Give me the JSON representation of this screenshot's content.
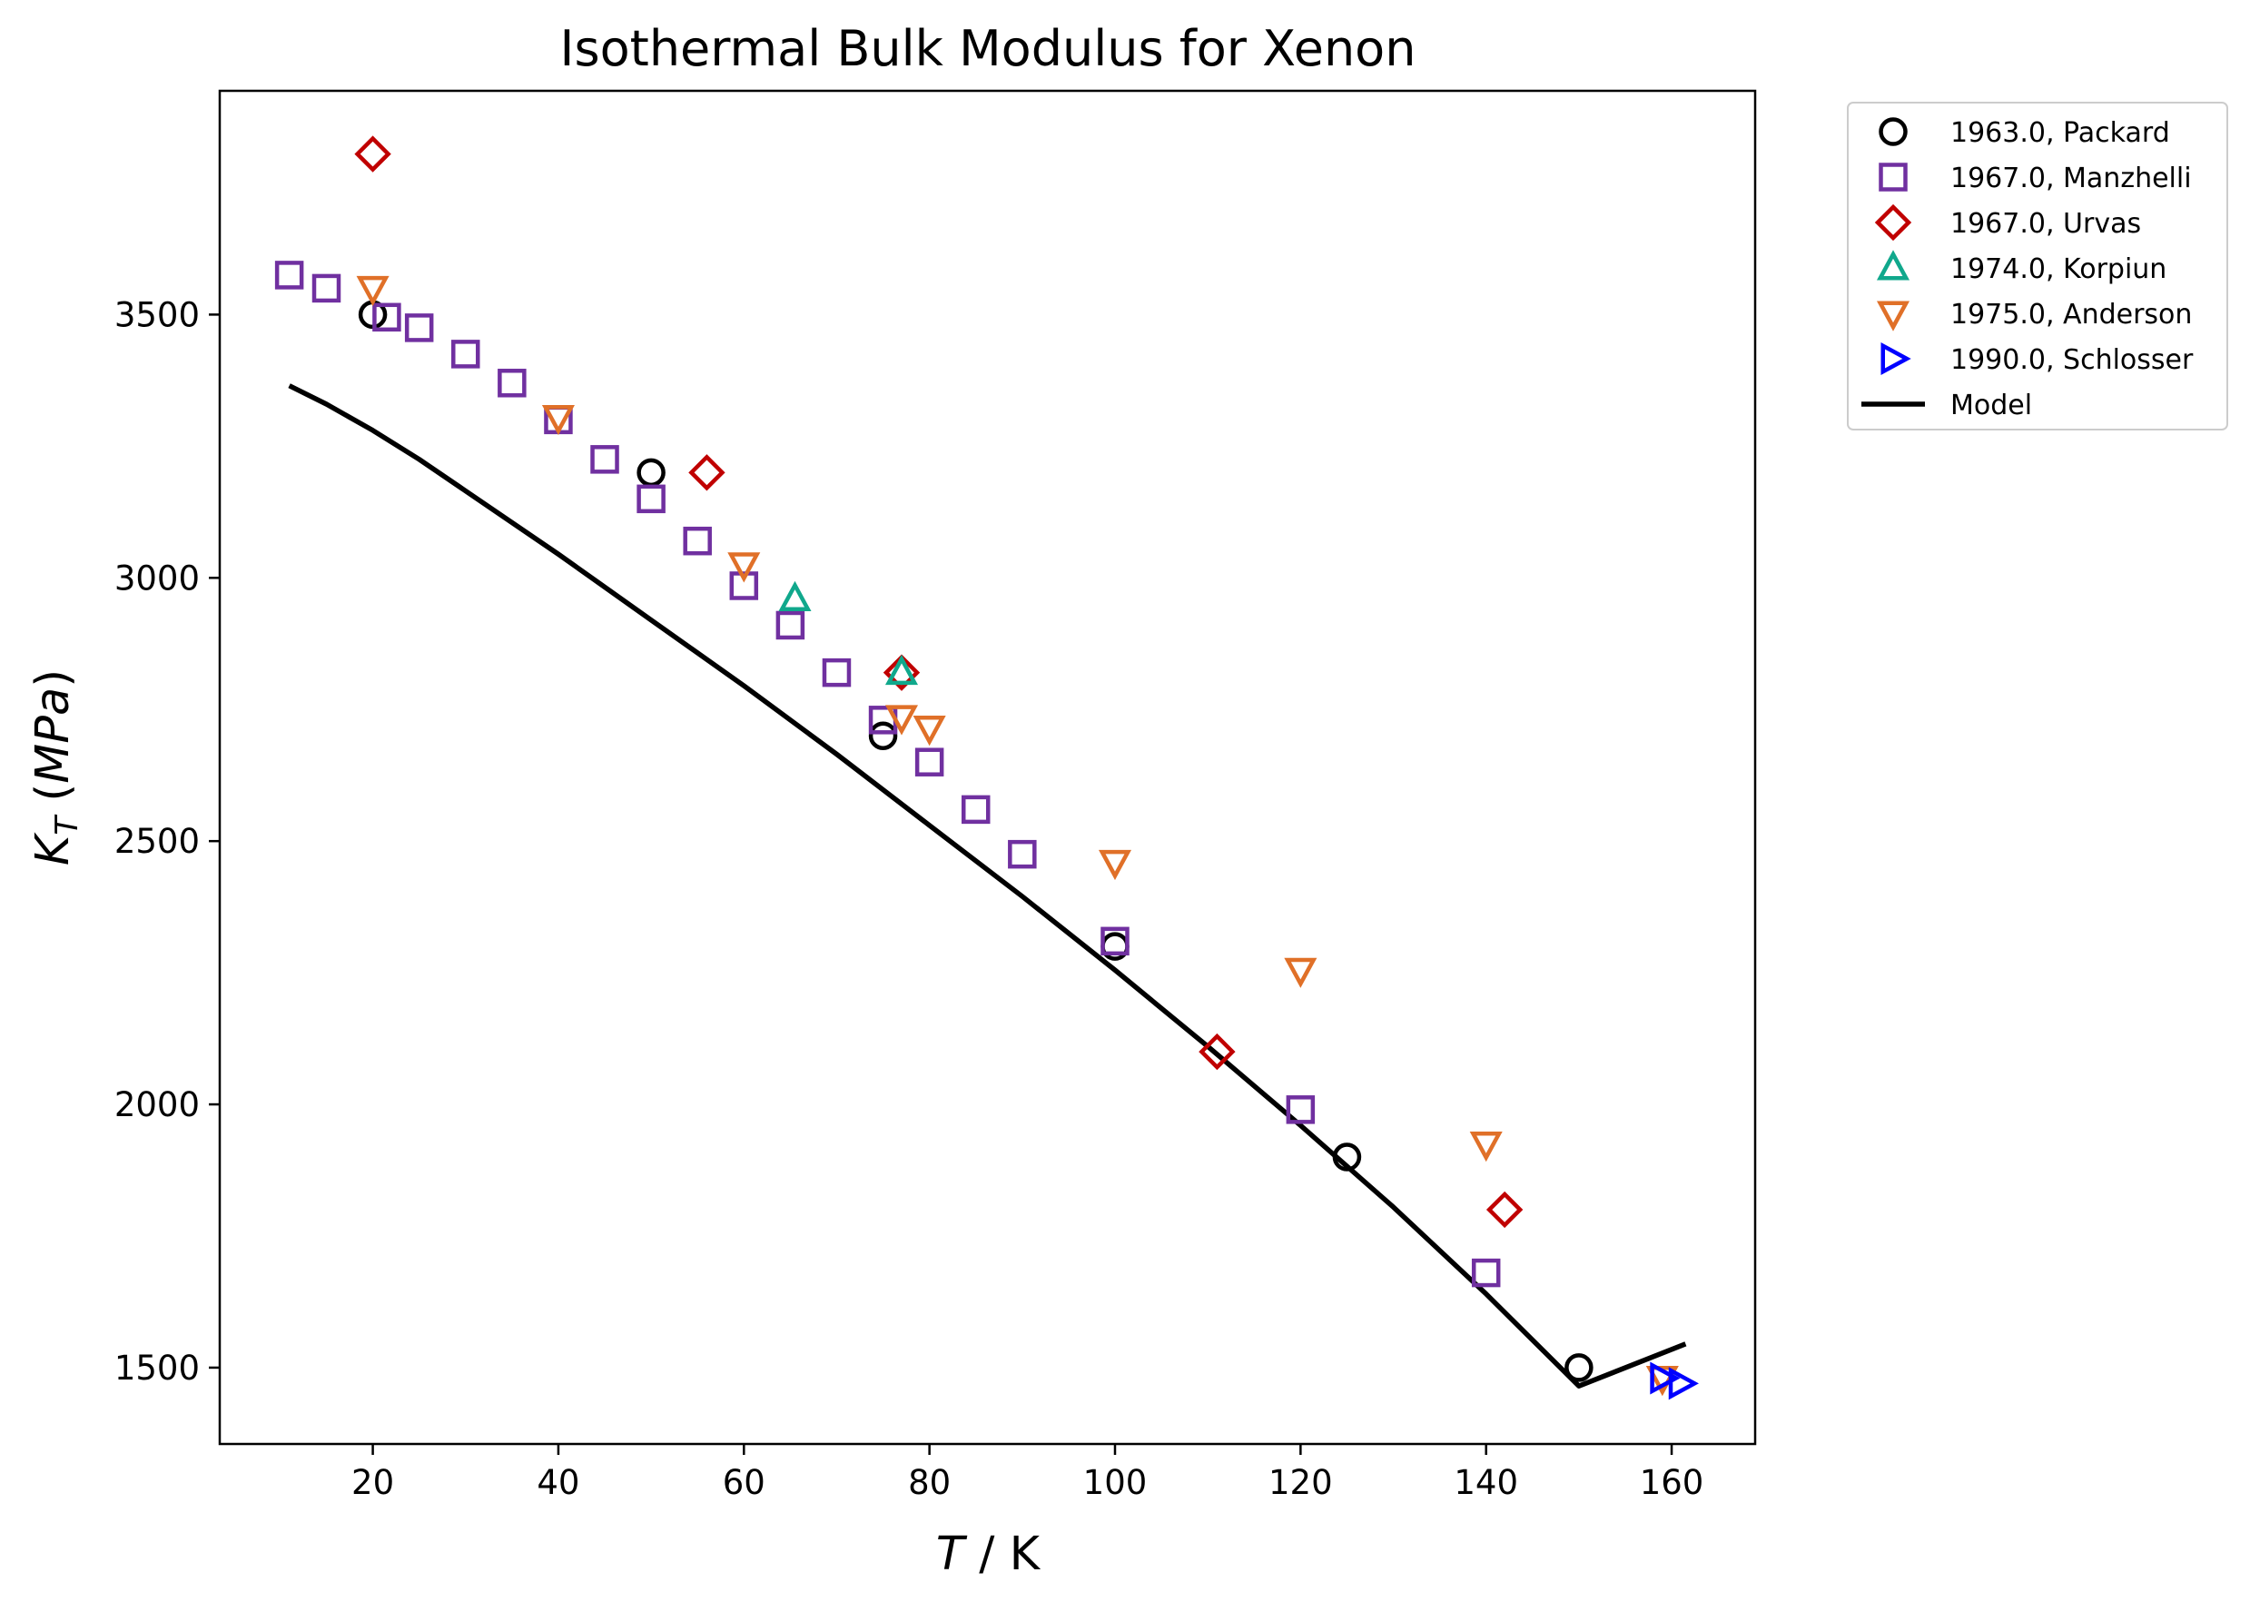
{
  "chart_data": {
    "type": "scatter",
    "title": "Isothermal Bulk Modulus for Xenon",
    "xlabel_var": "T",
    "xlabel_unit": " / K",
    "ylabel_var": "K",
    "ylabel_sub": "T",
    "ylabel_paren_open": " (",
    "ylabel_unit": "MPa",
    "ylabel_paren_close": ")",
    "xlim": [
      3.5,
      169
    ],
    "ylim": [
      1355,
      3925
    ],
    "xticks": [
      20,
      40,
      60,
      80,
      100,
      120,
      140,
      160
    ],
    "xtick_labels": [
      "20",
      "40",
      "60",
      "80",
      "100",
      "120",
      "140",
      "160"
    ],
    "yticks": [
      1500,
      2000,
      2500,
      3000,
      3500
    ],
    "ytick_labels": [
      "1500",
      "2000",
      "2500",
      "3000",
      "3500"
    ],
    "grid": false,
    "legend_position": "outside-top-right",
    "series": [
      {
        "name": "1963.0, Packard",
        "marker": "circle",
        "color": "#000000",
        "x": [
          20,
          50,
          75,
          100,
          125,
          150
        ],
        "y": [
          3500,
          3200,
          2700,
          2300,
          1900,
          1500
        ]
      },
      {
        "name": "1967.0, Manzhelli",
        "marker": "square",
        "color": "#7030a0",
        "x": [
          11,
          15,
          21.5,
          25,
          30,
          35,
          40,
          45,
          50,
          55,
          60,
          65,
          70,
          75,
          80,
          85,
          90,
          100,
          120,
          140
        ],
        "y": [
          3575,
          3550,
          3495,
          3475,
          3425,
          3370,
          3300,
          3225,
          3150,
          3070,
          2985,
          2910,
          2820,
          2730,
          2650,
          2560,
          2475,
          2310,
          1990,
          1680
        ]
      },
      {
        "name": "1967.0, Urvas",
        "marker": "diamond",
        "color": "#c00000",
        "x": [
          20,
          56,
          77,
          111,
          142
        ],
        "y": [
          3805,
          3200,
          2820,
          2100,
          1800
        ]
      },
      {
        "name": "1974.0, Korpiun",
        "marker": "triangle-up",
        "color": "#10a88c",
        "x": [
          65.5,
          77
        ],
        "y": [
          2960,
          2820
        ]
      },
      {
        "name": "1975.0, Anderson",
        "marker": "triangle-down",
        "color": "#e07028",
        "x": [
          20,
          40,
          60,
          77,
          80,
          100,
          120,
          140,
          159
        ],
        "y": [
          3550,
          3305,
          3025,
          2735,
          2715,
          2460,
          2255,
          1925,
          1480
        ]
      },
      {
        "name": "1990.0, Schlosser",
        "marker": "triangle-right",
        "color": "#0000ff",
        "x": [
          159,
          161
        ],
        "y": [
          1480,
          1470
        ]
      },
      {
        "name": "Model",
        "marker": "line",
        "color": "#000000",
        "x": [
          11,
          15,
          20,
          25,
          30,
          40,
          50,
          60,
          70,
          80,
          90,
          100,
          110,
          120,
          130,
          140,
          150,
          161.5
        ],
        "y": [
          3365,
          3330,
          3280,
          3225,
          3165,
          3045,
          2920,
          2795,
          2665,
          2530,
          2395,
          2255,
          2110,
          1960,
          1805,
          1640,
          1465,
          1545
        ]
      }
    ]
  }
}
